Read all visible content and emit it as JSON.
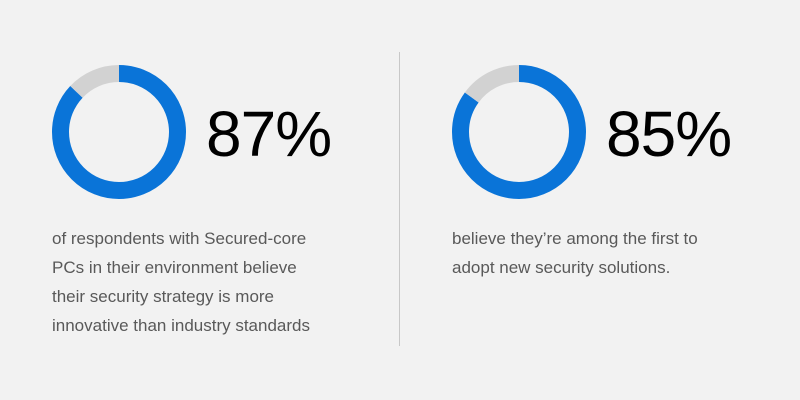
{
  "colors": {
    "background": "#f2f2f2",
    "accent": "#0a74d8",
    "remainder": "#d2d2d2",
    "number_text": "#000000",
    "caption_text": "#595959",
    "divider": "#c8c8c8"
  },
  "chart_data": [
    {
      "type": "pie",
      "style": "donut",
      "value_label": "87%",
      "values": [
        87,
        13
      ],
      "caption_lines": [
        "of respondents with Secured-core",
        "PCs in their environment believe",
        "their security strategy is more",
        "innovative than industry standards"
      ]
    },
    {
      "type": "pie",
      "style": "donut",
      "value_label": "85%",
      "values": [
        85,
        15
      ],
      "caption_lines": [
        "believe they’re among the first to",
        "adopt new security solutions."
      ]
    }
  ]
}
